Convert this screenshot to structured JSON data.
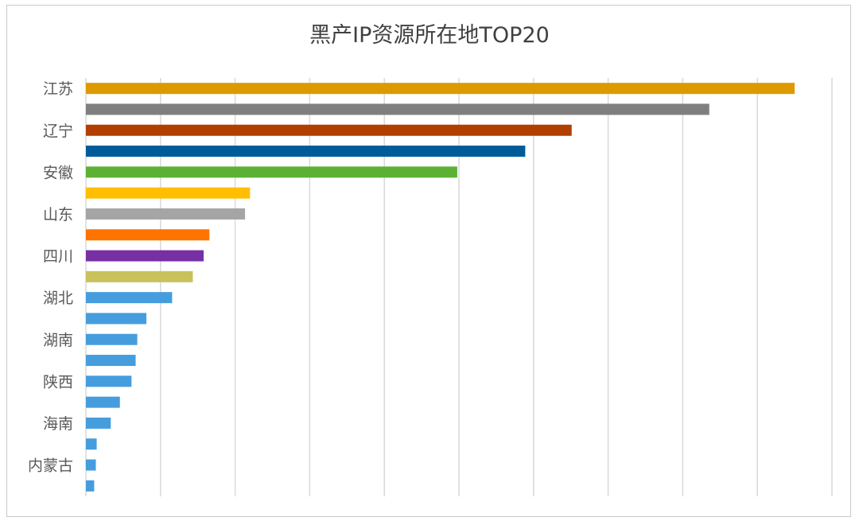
{
  "chart_data": {
    "type": "bar",
    "orientation": "horizontal",
    "title": "黑产IP资源所在地TOP20",
    "xlabel": "",
    "ylabel": "",
    "xlim": [
      0,
      90
    ],
    "grid": true,
    "x_tick_count": 10,
    "categories": [
      "江苏",
      "",
      "辽宁",
      "",
      "安徽",
      "",
      "山东",
      "",
      "四川",
      "",
      "湖北",
      "",
      "湖南",
      "",
      "陕西",
      "",
      "海南",
      "",
      "内蒙古",
      ""
    ],
    "values": [
      85.5,
      75.2,
      58.6,
      53.0,
      44.8,
      19.8,
      19.2,
      14.9,
      14.2,
      12.9,
      10.4,
      7.3,
      6.2,
      6.0,
      5.5,
      4.1,
      3.0,
      1.3,
      1.2,
      1.0
    ],
    "colors": [
      "#dd9a00",
      "#7f7f7f",
      "#b23e00",
      "#005c99",
      "#5bb133",
      "#ffbe00",
      "#a5a5a5",
      "#ff7300",
      "#7630a3",
      "#c9c25b",
      "#459ddd",
      "#459ddd",
      "#459ddd",
      "#459ddd",
      "#459ddd",
      "#459ddd",
      "#459ddd",
      "#459ddd",
      "#459ddd",
      "#459ddd"
    ]
  }
}
